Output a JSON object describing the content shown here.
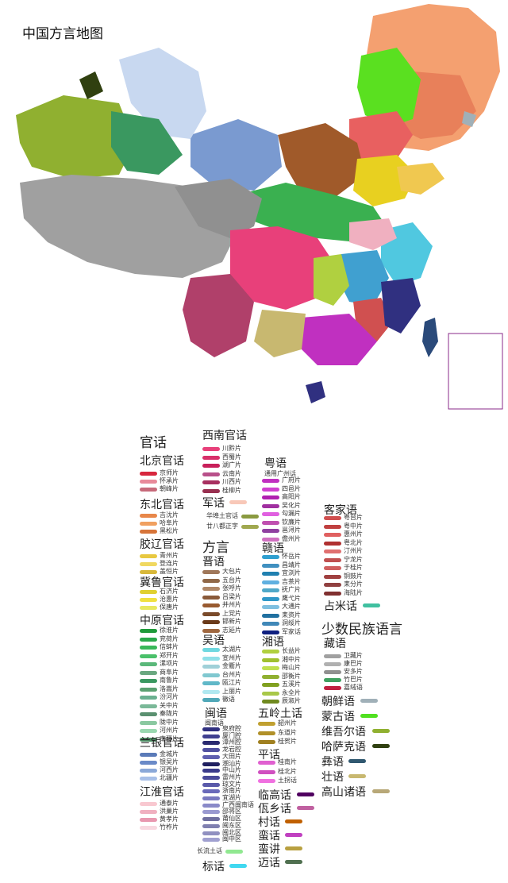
{
  "title": "中国方言地图",
  "legend": {
    "guanhua": "官话",
    "beijing": {
      "label": "北京官话",
      "items": [
        {
          "label": "京师片",
          "color": "#d7263d"
        },
        {
          "label": "怀承片",
          "color": "#e88a9a"
        },
        {
          "label": "朝峰片",
          "color": "#c76a7a"
        }
      ]
    },
    "dongbei": {
      "label": "东北官话",
      "items": [
        {
          "label": "吉沈片",
          "color": "#e8874a"
        },
        {
          "label": "哈阜片",
          "color": "#f0a060"
        },
        {
          "label": "黑松片",
          "color": "#d7753a"
        }
      ]
    },
    "jiaoliao": {
      "label": "胶辽官话",
      "items": [
        {
          "label": "青州片",
          "color": "#e8c840"
        },
        {
          "label": "登连片",
          "color": "#f0d860"
        },
        {
          "label": "盖恒片",
          "color": "#d8b83a"
        }
      ]
    },
    "jilu": {
      "label": "冀鲁官话",
      "items": [
        {
          "label": "石济片",
          "color": "#e0d030"
        },
        {
          "label": "沧惠片",
          "color": "#f0e040"
        },
        {
          "label": "保唐片",
          "color": "#e8e860"
        }
      ]
    },
    "zhongyuan": {
      "label": "中原官话",
      "items": [
        {
          "label": "徐淮片",
          "color": "#1f9a3a"
        },
        {
          "label": "兖荷片",
          "color": "#2aa84a"
        },
        {
          "label": "信蚌片",
          "color": "#3ab85a"
        },
        {
          "label": "郑开片",
          "color": "#4ac06a"
        },
        {
          "label": "漯项片",
          "color": "#5ab87a"
        },
        {
          "label": "商阜片",
          "color": "#6aa880"
        },
        {
          "label": "南鲁片",
          "color": "#3a9860"
        },
        {
          "label": "洛嵩片",
          "color": "#5aa070"
        },
        {
          "label": "汾河片",
          "color": "#6ab090"
        },
        {
          "label": "关中片",
          "color": "#7ab898"
        },
        {
          "label": "秦陇片",
          "color": "#5a9070"
        },
        {
          "label": "陇中片",
          "color": "#8ac8a0"
        },
        {
          "label": "河州片",
          "color": "#9ad8b0"
        },
        {
          "label": "南疆片",
          "color": "#4a8860"
        }
      ]
    },
    "lanyin": {
      "label": "兰银官话",
      "items": [
        {
          "label": "金城片",
          "color": "#5a7ab8"
        },
        {
          "label": "银吴片",
          "color": "#6a8ac8"
        },
        {
          "label": "河西片",
          "color": "#8aa8d8"
        },
        {
          "label": "北疆片",
          "color": "#a8c0e8"
        }
      ]
    },
    "jianghuai": {
      "label": "江淮官话",
      "items": [
        {
          "label": "通泰片",
          "color": "#f8c8d0"
        },
        {
          "label": "洪巢片",
          "color": "#f0b0c0"
        },
        {
          "label": "黄孝片",
          "color": "#e898b0"
        },
        {
          "label": "竹柞片",
          "color": "#f8d8e0"
        }
      ]
    },
    "xinan": {
      "label": "西南官话",
      "items": [
        {
          "label": "川黔片",
          "color": "#e8407a"
        },
        {
          "label": "西蜀片",
          "color": "#d8306a"
        },
        {
          "label": "湖广片",
          "color": "#c8205a"
        },
        {
          "label": "云南片",
          "color": "#b8508a"
        },
        {
          "label": "川西片",
          "color": "#a83060"
        },
        {
          "label": "桂柳片",
          "color": "#983050"
        }
      ]
    },
    "junhua": {
      "label": "军话",
      "color": "#f8c8b8"
    },
    "huabu": {
      "label": "华埠土官话",
      "color": "#8a9a40"
    },
    "nianba": {
      "label": "廿八都正字",
      "color": "#a0a850"
    },
    "fangyan": "方言",
    "jin": {
      "label": "晋语",
      "items": [
        {
          "label": "大包片",
          "color": "#a0785a"
        },
        {
          "label": "五台片",
          "color": "#906848"
        },
        {
          "label": "张呼片",
          "color": "#b08868"
        },
        {
          "label": "吕梁片",
          "color": "#8a5a3a"
        },
        {
          "label": "并州片",
          "color": "#985a30"
        },
        {
          "label": "上党片",
          "color": "#7a4a2a"
        },
        {
          "label": "邯新片",
          "color": "#6a3a1a"
        },
        {
          "label": "志延片",
          "color": "#a06840"
        }
      ]
    },
    "wu": {
      "label": "吴语",
      "items": [
        {
          "label": "太湖片",
          "color": "#70d8e0"
        },
        {
          "label": "宣州片",
          "color": "#90e0e8"
        },
        {
          "label": "金衢片",
          "color": "#a0d0d8"
        },
        {
          "label": "台州片",
          "color": "#80c8d0"
        },
        {
          "label": "瓯江片",
          "color": "#60b8c8"
        },
        {
          "label": "上丽片",
          "color": "#b0e8f0"
        },
        {
          "label": "徽语",
          "color": "#50a8b8"
        }
      ]
    },
    "min": {
      "label": "闽语",
      "sub": "闽南语",
      "items": [
        {
          "label": "泉府腔",
          "color": "#303080"
        },
        {
          "label": "厦门腔",
          "color": "#404090"
        },
        {
          "label": "漳州腔",
          "color": "#2a2a70"
        },
        {
          "label": "龙岩腔",
          "color": "#5050a0"
        },
        {
          "label": "大田片",
          "color": "#6060b0"
        },
        {
          "label": "潮汕片",
          "color": "#202060"
        },
        {
          "label": "中山片",
          "color": "#3a3a8a"
        },
        {
          "label": "雷州片",
          "color": "#4a4a9a"
        },
        {
          "label": "琼文片",
          "color": "#5a5aaa"
        },
        {
          "label": "浙南片",
          "color": "#6a6aba"
        },
        {
          "label": "宜湖片",
          "color": "#7a7ac0"
        },
        {
          "label": "广西闽南语",
          "color": "#8a8ac8"
        },
        {
          "label": "邵将区",
          "color": "#9a9ad0"
        },
        {
          "label": "莆仙区",
          "color": "#7070a0"
        },
        {
          "label": "闽东区",
          "color": "#8080b0"
        },
        {
          "label": "闽北区",
          "color": "#9090c0"
        },
        {
          "label": "闽中区",
          "color": "#a0a0d0"
        }
      ]
    },
    "changliu": {
      "label": "长流土话",
      "color": "#90e890"
    },
    "biao": {
      "label": "标话",
      "color": "#40d8f0"
    },
    "yue": {
      "label": "粤语",
      "sub": "通用广州话",
      "items": [
        {
          "label": "广府片",
          "color": "#c030c0"
        },
        {
          "label": "四邑片",
          "color": "#d040d0"
        },
        {
          "label": "高阳片",
          "color": "#b020b0"
        },
        {
          "label": "吴化片",
          "color": "#a030a0"
        },
        {
          "label": "勾漏片",
          "color": "#e060e0"
        },
        {
          "label": "钦廉片",
          "color": "#c050b0"
        },
        {
          "label": "邕浔片",
          "color": "#9040a0"
        },
        {
          "label": "儋州片",
          "color": "#d070c0"
        }
      ]
    },
    "gan": {
      "label": "赣语",
      "items": [
        {
          "label": "怀岳片",
          "color": "#30a0d0"
        },
        {
          "label": "昌靖片",
          "color": "#4090c0"
        },
        {
          "label": "宜浏片",
          "color": "#2080b0"
        },
        {
          "label": "吉茶片",
          "color": "#60b0e0"
        },
        {
          "label": "抚广片",
          "color": "#50a8c8"
        },
        {
          "label": "鹰弋片",
          "color": "#3098c8"
        },
        {
          "label": "大通片",
          "color": "#80c0e0"
        },
        {
          "label": "耒资片",
          "color": "#2070a0"
        },
        {
          "label": "洞绥片",
          "color": "#4088b8"
        },
        {
          "label": "军家话",
          "color": "#102080"
        }
      ]
    },
    "xiang": {
      "label": "湘语",
      "items": [
        {
          "label": "长益片",
          "color": "#b0d040"
        },
        {
          "label": "湘中片",
          "color": "#a0c030"
        },
        {
          "label": "梅山片",
          "color": "#c0e050"
        },
        {
          "label": "邵衡片",
          "color": "#90b030"
        },
        {
          "label": "五溪片",
          "color": "#80a020"
        },
        {
          "label": "永全片",
          "color": "#a8c848"
        },
        {
          "label": "辰溆片",
          "color": "#708a20"
        }
      ]
    },
    "wuling": {
      "label": "五岭土话",
      "items": [
        {
          "label": "韶州片",
          "color": "#c0a030"
        },
        {
          "label": "东道片",
          "color": "#b09028"
        },
        {
          "label": "桂贺片",
          "color": "#a08020"
        }
      ]
    },
    "ping": {
      "label": "平话",
      "items": [
        {
          "label": "桂南片",
          "color": "#e060d0"
        },
        {
          "label": "桂北片",
          "color": "#d050c0"
        },
        {
          "label": "土拐话",
          "color": "#f070e0"
        }
      ]
    },
    "others": [
      {
        "label": "临高话",
        "color": "#500060"
      },
      {
        "label": "佤乡话",
        "color": "#c060a0"
      },
      {
        "label": "村话",
        "color": "#c06000"
      },
      {
        "label": "蛮话",
        "color": "#c040c0"
      },
      {
        "label": "蛮讲",
        "color": "#b8a040"
      },
      {
        "label": "迈话",
        "color": "#507050"
      }
    ],
    "kejia": {
      "label": "客家语",
      "items": [
        {
          "label": "粤台片",
          "color": "#d05050"
        },
        {
          "label": "粤中片",
          "color": "#c04040"
        },
        {
          "label": "惠州片",
          "color": "#e06060"
        },
        {
          "label": "粤北片",
          "color": "#b03030"
        },
        {
          "label": "汀州片",
          "color": "#e07070"
        },
        {
          "label": "宁龙片",
          "color": "#c05050"
        },
        {
          "label": "于桂片",
          "color": "#d06060"
        },
        {
          "label": "铜鼓片",
          "color": "#a04040"
        },
        {
          "label": "耒分片",
          "color": "#904040"
        },
        {
          "label": "海陆片",
          "color": "#803030"
        }
      ]
    },
    "zhanmi": {
      "label": "占米话",
      "color": "#40c0a0"
    },
    "shaoshu": "少数民族语言",
    "zang": {
      "label": "藏语",
      "items": [
        {
          "label": "卫藏片",
          "color": "#a0a0a0"
        },
        {
          "label": "康巴片",
          "color": "#b0b0b0"
        },
        {
          "label": "安多片",
          "color": "#909090"
        },
        {
          "label": "竹巴片",
          "color": "#40a060"
        },
        {
          "label": "嘉绒语",
          "color": "#c02040"
        }
      ]
    },
    "minority": [
      {
        "label": "朝鲜语",
        "color": "#a0b0b8"
      },
      {
        "label": "蒙古语",
        "color": "#50e020"
      },
      {
        "label": "维吾尔语",
        "color": "#90b030"
      },
      {
        "label": "哈萨克语",
        "color": "#304010"
      },
      {
        "label": "彝语",
        "color": "#305870"
      },
      {
        "label": "壮语",
        "color": "#c8b870"
      },
      {
        "label": "高山诸语",
        "color": "#b8a878"
      }
    ]
  }
}
